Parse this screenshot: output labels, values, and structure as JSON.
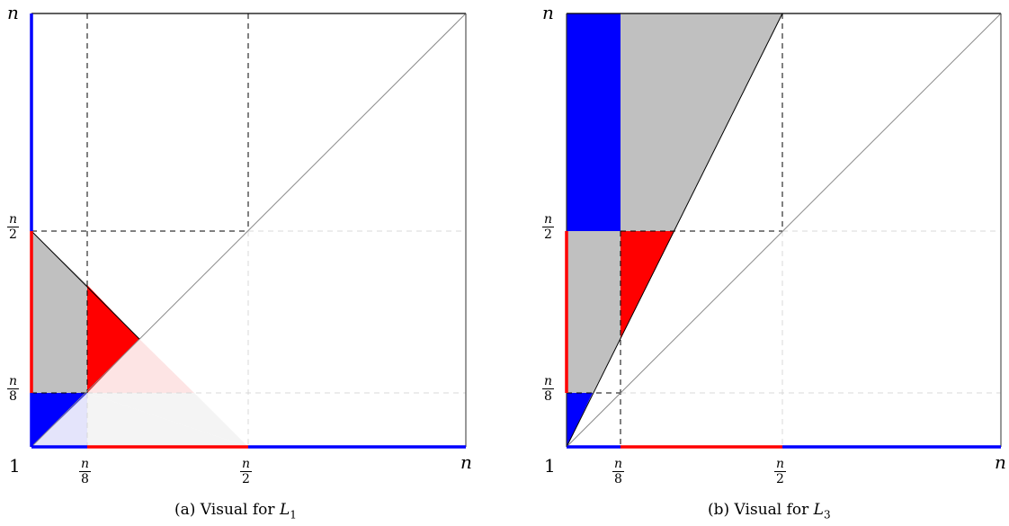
{
  "panels": [
    {
      "id": "a",
      "caption_prefix": "(a) Visual for",
      "caption_var": "L",
      "caption_sub": "1",
      "axis_one": "1",
      "axis_n": "n",
      "frac_num": "n",
      "frac_den_8": "8",
      "frac_den_2": "2"
    },
    {
      "id": "b",
      "caption_prefix": "(b) Visual for",
      "caption_var": "L",
      "caption_sub": "3",
      "axis_one": "1",
      "axis_n": "n",
      "frac_num": "n",
      "frac_den_8": "8",
      "frac_den_2": "2"
    }
  ],
  "colors": {
    "blue": "#0000ff",
    "red": "#ff0000",
    "gray": "#c0c0c0",
    "light_red": "#fde4e4",
    "light_gray": "#f4f4f4",
    "light_blue": "#e4e4fb",
    "dashed": "#000000",
    "faint_dashed": "#d9d9d9"
  }
}
